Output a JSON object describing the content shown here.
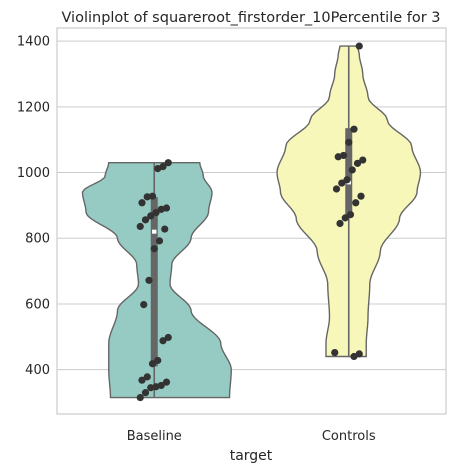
{
  "chart_data": {
    "type": "violin",
    "title": "Violinplot of squareroot_firstorder_10Percentile for 3",
    "xlabel": "target",
    "ylabel": "",
    "categories": [
      "Baseline",
      "Controls"
    ],
    "ylim": [
      265,
      1440
    ],
    "yticks": [
      400,
      600,
      800,
      1000,
      1200,
      1400
    ],
    "grid": true,
    "colors": {
      "Baseline": "#96cbc3",
      "Controls": "#f7f7ba",
      "outline": "#666666",
      "points": "#333333",
      "grid": "#cccccc",
      "box": "#666666"
    },
    "violins": [
      {
        "name": "Baseline",
        "min": 315,
        "max": 1030,
        "q1": 410,
        "median": 820,
        "q3": 925,
        "outline_right": [
          [
            315,
            0.86
          ],
          [
            400,
            0.88
          ],
          [
            480,
            0.76
          ],
          [
            580,
            0.42
          ],
          [
            660,
            0.18
          ],
          [
            720,
            0.2
          ],
          [
            800,
            0.42
          ],
          [
            880,
            0.62
          ],
          [
            940,
            0.66
          ],
          [
            990,
            0.56
          ],
          [
            1030,
            0.52
          ]
        ],
        "outline_left": [
          [
            315,
            0.5
          ],
          [
            400,
            0.52
          ],
          [
            480,
            0.52
          ],
          [
            580,
            0.42
          ],
          [
            660,
            0.18
          ],
          [
            720,
            0.2
          ],
          [
            800,
            0.42
          ],
          [
            880,
            0.78
          ],
          [
            940,
            0.82
          ],
          [
            990,
            0.56
          ],
          [
            1030,
            0.52
          ]
        ],
        "points": [
          315,
          330,
          345,
          348,
          352,
          362,
          368,
          378,
          418,
          428,
          488,
          498,
          598,
          672,
          768,
          792,
          828,
          836,
          856,
          868,
          878,
          888,
          892,
          908,
          926,
          928,
          1012,
          1018,
          1030
        ]
      },
      {
        "name": "Controls",
        "min": 440,
        "max": 1385,
        "q1": 870,
        "median": 970,
        "q3": 1135,
        "outline_right": [
          [
            440,
            0.2
          ],
          [
            480,
            0.2
          ],
          [
            560,
            0.22
          ],
          [
            660,
            0.24
          ],
          [
            760,
            0.36
          ],
          [
            860,
            0.58
          ],
          [
            940,
            0.78
          ],
          [
            1000,
            0.82
          ],
          [
            1080,
            0.72
          ],
          [
            1160,
            0.44
          ],
          [
            1230,
            0.22
          ],
          [
            1300,
            0.16
          ],
          [
            1360,
            0.12
          ],
          [
            1385,
            0.1
          ]
        ],
        "outline_left": [
          [
            440,
            0.26
          ],
          [
            480,
            0.26
          ],
          [
            560,
            0.22
          ],
          [
            660,
            0.24
          ],
          [
            760,
            0.36
          ],
          [
            860,
            0.6
          ],
          [
            940,
            0.78
          ],
          [
            1000,
            0.82
          ],
          [
            1080,
            0.72
          ],
          [
            1160,
            0.44
          ],
          [
            1230,
            0.22
          ],
          [
            1300,
            0.16
          ],
          [
            1360,
            0.12
          ],
          [
            1385,
            0.1
          ]
        ],
        "points": [
          440,
          448,
          452,
          845,
          862,
          872,
          908,
          928,
          950,
          968,
          978,
          1008,
          1028,
          1038,
          1048,
          1052,
          1092,
          1132,
          1385
        ]
      }
    ]
  }
}
